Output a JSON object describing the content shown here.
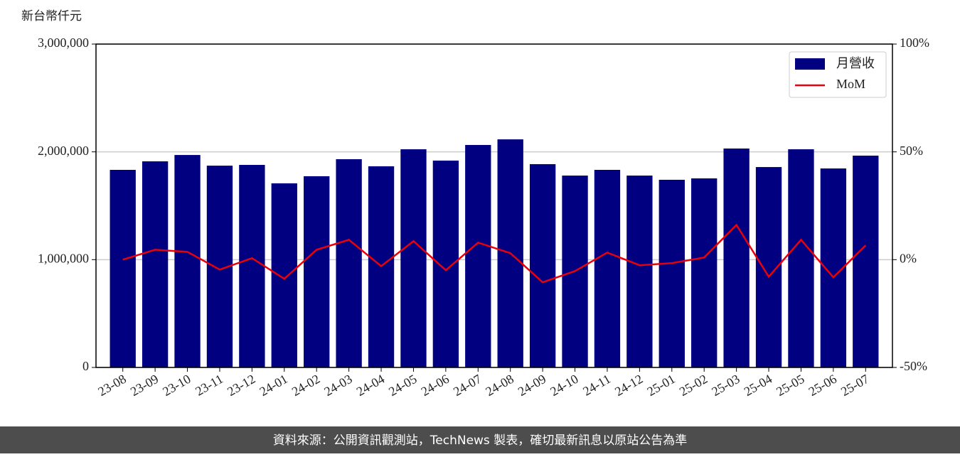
{
  "chart_data": {
    "type": "bar_line",
    "ylabel": "新台幣仟元",
    "source": "資料來源：公開資訊觀測站，TechNews 製表，確切最新訊息以原站公告為準",
    "categories": [
      "23-08",
      "23-09",
      "23-10",
      "23-11",
      "23-12",
      "24-01",
      "24-02",
      "24-03",
      "24-04",
      "24-05",
      "24-06",
      "24-07",
      "24-08",
      "24-09",
      "24-10",
      "24-11",
      "24-12",
      "25-01",
      "25-02",
      "25-03",
      "25-04",
      "25-05",
      "25-06",
      "25-07"
    ],
    "series": [
      {
        "name": "月營收",
        "type": "bar",
        "color": "#000080",
        "values": [
          1833000,
          1912000,
          1971000,
          1872000,
          1879000,
          1708000,
          1774000,
          1932000,
          1866000,
          2024000,
          1919000,
          2064000,
          2116000,
          1886000,
          1780000,
          1833000,
          1780000,
          1741000,
          1754000,
          2031000,
          1859000,
          2024000,
          1846000,
          1965000
        ]
      },
      {
        "name": "MoM",
        "type": "line",
        "axis": "y2",
        "color": "#e8000b",
        "values": [
          0,
          4.6,
          3.6,
          -4.6,
          0.7,
          -8.9,
          4.6,
          9.2,
          -3.0,
          8.6,
          -4.9,
          7.9,
          3.0,
          -10.5,
          -5.3,
          3.3,
          -2.6,
          -1.6,
          1.0,
          16.1,
          -7.9,
          9.2,
          -8.2,
          6.6
        ]
      }
    ],
    "ylim": [
      0,
      3000000
    ],
    "yticks": [
      {
        "value": 0,
        "label": "0"
      },
      {
        "value": 1000000,
        "label": "1,000,000"
      },
      {
        "value": 2000000,
        "label": "2,000,000"
      },
      {
        "value": 3000000,
        "label": "3,000,000"
      }
    ],
    "y2lim": [
      -50,
      100
    ],
    "y2ticks": [
      {
        "value": -50,
        "label": "-50%"
      },
      {
        "value": 0,
        "label": "0%"
      },
      {
        "value": 50,
        "label": "50%"
      },
      {
        "value": 100,
        "label": "100%"
      }
    ],
    "grid": true,
    "legend": "upper right"
  }
}
